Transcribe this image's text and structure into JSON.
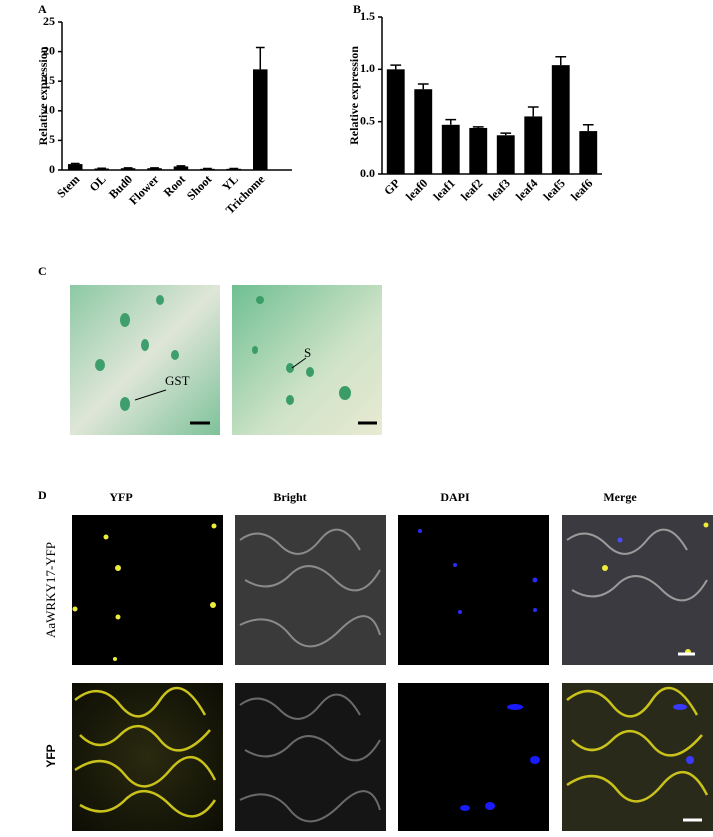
{
  "panel_labels": [
    "A",
    "B",
    "C",
    "D"
  ],
  "chart_data": [
    {
      "type": "bar",
      "ylabel": "Relative expression",
      "categories": [
        "Stem",
        "OL",
        "Bud0",
        "Flower",
        "Root",
        "Shoot",
        "YL",
        "Trichome"
      ],
      "values": [
        1.0,
        0.25,
        0.3,
        0.3,
        0.6,
        0.2,
        0.2,
        17
      ],
      "errors": [
        0.1,
        0.05,
        0.05,
        0.05,
        0.1,
        0.05,
        0.05,
        3.7
      ],
      "color": "#000000",
      "ylim": [
        0,
        25
      ],
      "yticks": [
        0,
        5,
        10,
        15,
        20,
        25
      ]
    },
    {
      "type": "bar",
      "ylabel": "Relative expression",
      "categories": [
        "GP",
        "leaf0",
        "leaf1",
        "leaf2",
        "leaf3",
        "leaf4",
        "leaf5",
        "leaf6"
      ],
      "values": [
        1.0,
        0.81,
        0.47,
        0.44,
        0.37,
        0.55,
        1.04,
        0.41
      ],
      "errors": [
        0.04,
        0.05,
        0.05,
        0.01,
        0.02,
        0.09,
        0.08,
        0.06
      ],
      "color": "#000000",
      "ylim": [
        0,
        1.5
      ],
      "yticks": [
        {
          "value": 0,
          "label": "0.0"
        },
        {
          "value": 0.5,
          "label": "0.5"
        },
        {
          "value": 1,
          "label": "1.0"
        },
        {
          "value": 1.5,
          "label": "1.5"
        }
      ]
    }
  ],
  "panel_c": {
    "labels": [
      "GST",
      "S"
    ]
  },
  "panel_d": {
    "columns": [
      "YFP",
      "Bright",
      "DAPI",
      "Merge"
    ],
    "rows": [
      "AaWRKY17-YFP",
      "YFP"
    ]
  }
}
